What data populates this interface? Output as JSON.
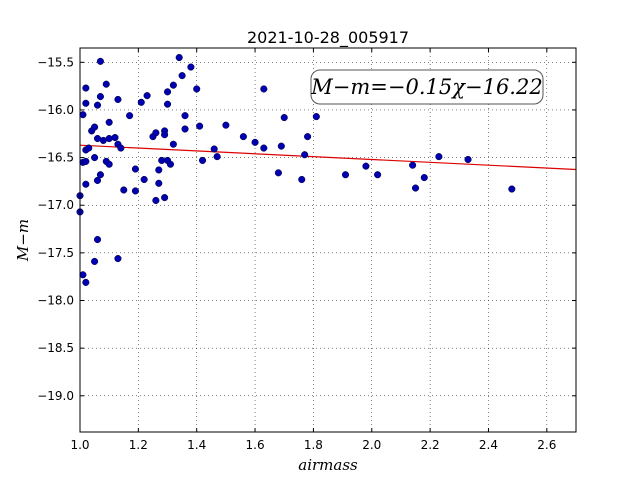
{
  "chart_data": {
    "type": "scatter",
    "title": "2021-10-28_005917",
    "xlabel": "airmass",
    "ylabel": "M−m",
    "xlim": [
      1.0,
      2.7
    ],
    "ylim": [
      -15.35,
      -19.38
    ],
    "y_inverted": true,
    "grid": true,
    "xticks": [
      1.0,
      1.2,
      1.4,
      1.6,
      1.8,
      2.0,
      2.2,
      2.4,
      2.6
    ],
    "xtick_labels": [
      "1.0",
      "1.2",
      "1.4",
      "1.6",
      "1.8",
      "2.0",
      "2.2",
      "2.4",
      "2.6"
    ],
    "yticks": [
      -15.5,
      -16.0,
      -16.5,
      -17.0,
      -17.5,
      -18.0,
      -18.5,
      -19.0
    ],
    "ytick_labels": [
      "−15.5",
      "−16.0",
      "−16.5",
      "−17.0",
      "−17.5",
      "−18.0",
      "−18.5",
      "−19.0"
    ],
    "annotation": "M−m=−0.15χ−16.22",
    "annotation_position": "top-right",
    "fit": {
      "slope": -0.15,
      "intercept": -16.22,
      "color": "#dd0000"
    },
    "point_color": "#0000b0",
    "points": [
      [
        1.0,
        -16.9
      ],
      [
        1.0,
        -17.07
      ],
      [
        1.01,
        -16.55
      ],
      [
        1.01,
        -16.05
      ],
      [
        1.01,
        -17.73
      ],
      [
        1.02,
        -17.81
      ],
      [
        1.02,
        -15.77
      ],
      [
        1.02,
        -15.93
      ],
      [
        1.02,
        -16.42
      ],
      [
        1.02,
        -16.54
      ],
      [
        1.02,
        -16.78
      ],
      [
        1.03,
        -16.4
      ],
      [
        1.04,
        -16.22
      ],
      [
        1.05,
        -16.18
      ],
      [
        1.05,
        -16.5
      ],
      [
        1.05,
        -17.59
      ],
      [
        1.06,
        -15.95
      ],
      [
        1.06,
        -16.3
      ],
      [
        1.06,
        -16.74
      ],
      [
        1.06,
        -17.36
      ],
      [
        1.07,
        -15.49
      ],
      [
        1.07,
        -15.86
      ],
      [
        1.07,
        -16.68
      ],
      [
        1.08,
        -16.32
      ],
      [
        1.09,
        -15.73
      ],
      [
        1.09,
        -16.54
      ],
      [
        1.1,
        -16.13
      ],
      [
        1.1,
        -16.57
      ],
      [
        1.1,
        -16.3
      ],
      [
        1.12,
        -16.29
      ],
      [
        1.13,
        -15.89
      ],
      [
        1.13,
        -16.36
      ],
      [
        1.13,
        -17.56
      ],
      [
        1.14,
        -16.4
      ],
      [
        1.15,
        -16.84
      ],
      [
        1.17,
        -16.06
      ],
      [
        1.19,
        -16.62
      ],
      [
        1.19,
        -16.85
      ],
      [
        1.21,
        -15.92
      ],
      [
        1.22,
        -16.73
      ],
      [
        1.23,
        -15.85
      ],
      [
        1.25,
        -16.28
      ],
      [
        1.26,
        -16.24
      ],
      [
        1.26,
        -16.95
      ],
      [
        1.27,
        -16.77
      ],
      [
        1.27,
        -16.63
      ],
      [
        1.28,
        -16.53
      ],
      [
        1.29,
        -16.22
      ],
      [
        1.29,
        -16.26
      ],
      [
        1.29,
        -16.92
      ],
      [
        1.3,
        -15.81
      ],
      [
        1.3,
        -15.94
      ],
      [
        1.3,
        -16.53
      ],
      [
        1.31,
        -16.57
      ],
      [
        1.32,
        -16.36
      ],
      [
        1.32,
        -15.74
      ],
      [
        1.34,
        -15.45
      ],
      [
        1.35,
        -15.64
      ],
      [
        1.36,
        -16.06
      ],
      [
        1.36,
        -16.2
      ],
      [
        1.38,
        -15.55
      ],
      [
        1.4,
        -15.78
      ],
      [
        1.41,
        -16.17
      ],
      [
        1.42,
        -16.53
      ],
      [
        1.46,
        -16.41
      ],
      [
        1.47,
        -16.49
      ],
      [
        1.5,
        -16.16
      ],
      [
        1.56,
        -16.28
      ],
      [
        1.6,
        -16.34
      ],
      [
        1.63,
        -15.78
      ],
      [
        1.63,
        -16.4
      ],
      [
        1.68,
        -16.66
      ],
      [
        1.69,
        -16.38
      ],
      [
        1.7,
        -16.08
      ],
      [
        1.76,
        -16.73
      ],
      [
        1.77,
        -16.47
      ],
      [
        1.78,
        -16.28
      ],
      [
        1.81,
        -16.07
      ],
      [
        1.91,
        -16.68
      ],
      [
        1.98,
        -16.59
      ],
      [
        2.02,
        -16.68
      ],
      [
        2.14,
        -16.58
      ],
      [
        2.15,
        -16.82
      ],
      [
        2.18,
        -16.71
      ],
      [
        2.23,
        -16.49
      ],
      [
        2.33,
        -16.52
      ],
      [
        2.48,
        -16.83
      ]
    ]
  }
}
